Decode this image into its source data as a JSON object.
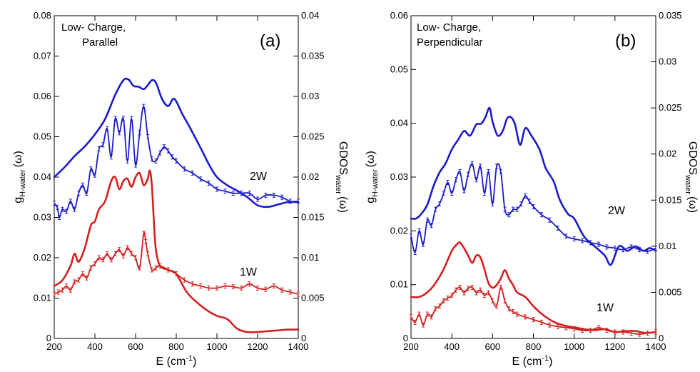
{
  "chart_data": [
    {
      "type": "line",
      "panel_label": "(a)",
      "annotation_lines": [
        "Low- Charge,",
        "Parallel"
      ],
      "xlabel_main": "E (cm",
      "xlabel_sup": "-1",
      "xlabel_end": ")",
      "ylabel_left_main": "g",
      "ylabel_left_sub": "H-water",
      "ylabel_left_end": "(ω)",
      "ylabel_right_main": "GDOS",
      "ylabel_right_sub": "water",
      "ylabel_right_end": "(ω)",
      "xlim": [
        200,
        1400
      ],
      "ylim_left": [
        0,
        0.08
      ],
      "ylim_right": [
        0,
        0.04
      ],
      "xticks": [
        "200",
        "400",
        "600",
        "800",
        "1000",
        "1200",
        "1400"
      ],
      "yticks_left": [
        "0",
        "0.01",
        "0.02",
        "0.03",
        "0.04",
        "0.05",
        "0.06",
        "0.07",
        "0.08"
      ],
      "yticks_right": [
        "0",
        "0.005",
        "0.01",
        "0.015",
        "0.02",
        "0.025",
        "0.03",
        "0.035",
        "0.04"
      ],
      "series": [
        {
          "label": "2W",
          "axis": "right",
          "style": "smooth",
          "color": "#1a1acc",
          "x": [
            200,
            250,
            300,
            350,
            400,
            450,
            500,
            540,
            565,
            590,
            615,
            640,
            660,
            680,
            700,
            730,
            760,
            790,
            830,
            870,
            920,
            960,
            1000,
            1050,
            1100,
            1150,
            1200,
            1250,
            1300,
            1350,
            1400
          ],
          "y": [
            0.02,
            0.0212,
            0.0226,
            0.0238,
            0.0253,
            0.0272,
            0.0302,
            0.032,
            0.0321,
            0.0313,
            0.0312,
            0.0309,
            0.0314,
            0.032,
            0.0317,
            0.0297,
            0.0288,
            0.0297,
            0.0278,
            0.026,
            0.0236,
            0.0216,
            0.02,
            0.019,
            0.0183,
            0.0175,
            0.0165,
            0.0163,
            0.0166,
            0.0169,
            0.0169
          ]
        },
        {
          "label": "2W",
          "axis": "left",
          "style": "errorbar",
          "color": "#1a1acc",
          "x": [
            200,
            215,
            225,
            240,
            260,
            280,
            300,
            320,
            340,
            360,
            380,
            400,
            420,
            440,
            460,
            480,
            500,
            520,
            540,
            560,
            580,
            600,
            620,
            640,
            660,
            680,
            700,
            720,
            740,
            760,
            780,
            800,
            840,
            880,
            920,
            960,
            1000,
            1040,
            1080,
            1120,
            1160,
            1200,
            1240,
            1280,
            1320,
            1360,
            1400
          ],
          "y": [
            0.0335,
            0.0325,
            0.03,
            0.032,
            0.0315,
            0.034,
            0.032,
            0.036,
            0.038,
            0.036,
            0.042,
            0.0405,
            0.047,
            0.048,
            0.052,
            0.045,
            0.0545,
            0.051,
            0.0545,
            0.044,
            0.0545,
            0.043,
            0.051,
            0.0575,
            0.05,
            0.0445,
            0.044,
            0.046,
            0.0475,
            0.0465,
            0.045,
            0.044,
            0.042,
            0.041,
            0.0395,
            0.0385,
            0.037,
            0.0365,
            0.036,
            0.036,
            0.036,
            0.0345,
            0.0355,
            0.0355,
            0.035,
            0.034,
            0.034
          ]
        },
        {
          "label": "1W",
          "axis": "right",
          "style": "smooth",
          "color": "#d42020",
          "x": [
            200,
            240,
            280,
            300,
            320,
            350,
            380,
            400,
            420,
            450,
            480,
            500,
            520,
            540,
            560,
            580,
            600,
            620,
            640,
            660,
            670,
            680,
            690,
            700,
            720,
            760,
            800,
            850,
            900,
            950,
            1000,
            1050,
            1100,
            1150,
            1200,
            1250,
            1300,
            1350,
            1400
          ],
          "y": [
            0.0065,
            0.0072,
            0.009,
            0.0105,
            0.0095,
            0.0112,
            0.014,
            0.0145,
            0.016,
            0.017,
            0.0195,
            0.02,
            0.0185,
            0.0195,
            0.0198,
            0.0188,
            0.02,
            0.0205,
            0.019,
            0.0198,
            0.0208,
            0.019,
            0.0145,
            0.011,
            0.009,
            0.0085,
            0.008,
            0.0058,
            0.0045,
            0.0035,
            0.0028,
            0.0024,
            0.0012,
            0.0008,
            0.0008,
            0.0009,
            0.001,
            0.0011,
            0.0011
          ]
        },
        {
          "label": "1W",
          "axis": "left",
          "style": "errorbar",
          "color": "#d42020",
          "x": [
            200,
            220,
            240,
            260,
            280,
            300,
            320,
            340,
            360,
            380,
            400,
            420,
            440,
            460,
            480,
            500,
            520,
            540,
            560,
            580,
            600,
            620,
            640,
            650,
            660,
            680,
            700,
            720,
            760,
            800,
            840,
            880,
            920,
            960,
            1000,
            1040,
            1080,
            1120,
            1160,
            1200,
            1240,
            1280,
            1320,
            1360,
            1400
          ],
          "y": [
            0.011,
            0.0115,
            0.012,
            0.013,
            0.012,
            0.014,
            0.0145,
            0.016,
            0.015,
            0.0175,
            0.0185,
            0.02,
            0.0195,
            0.021,
            0.0195,
            0.021,
            0.022,
            0.0205,
            0.0225,
            0.021,
            0.02,
            0.0175,
            0.026,
            0.024,
            0.021,
            0.017,
            0.0175,
            0.018,
            0.017,
            0.016,
            0.0145,
            0.0135,
            0.013,
            0.0125,
            0.0125,
            0.013,
            0.0128,
            0.0125,
            0.0135,
            0.0125,
            0.0122,
            0.013,
            0.012,
            0.0115,
            0.011
          ]
        }
      ]
    },
    {
      "type": "line",
      "panel_label": "(b)",
      "annotation_lines": [
        "Low- Charge,",
        "Perpendicular"
      ],
      "xlabel_main": "E (cm",
      "xlabel_sup": "-1",
      "xlabel_end": ")",
      "ylabel_left_main": "g",
      "ylabel_left_sub": "H-water",
      "ylabel_left_end": "(ω)",
      "ylabel_right_main": "GDOS",
      "ylabel_right_sub": "water",
      "ylabel_right_end": "(ω)",
      "xlim": [
        200,
        1400
      ],
      "ylim_left": [
        0,
        0.06
      ],
      "ylim_right": [
        0,
        0.035
      ],
      "xticks": [
        "200",
        "400",
        "600",
        "800",
        "1000",
        "1200",
        "1400"
      ],
      "yticks_left": [
        "0",
        "0.01",
        "0.02",
        "0.03",
        "0.04",
        "0.05",
        "0.06"
      ],
      "yticks_right": [
        "0",
        "0.005",
        "0.01",
        "0.015",
        "0.02",
        "0.025",
        "0.03",
        "0.035"
      ],
      "series": [
        {
          "label": "2W",
          "axis": "right",
          "style": "smooth",
          "color": "#1a1acc",
          "x": [
            200,
            225,
            250,
            280,
            310,
            340,
            370,
            400,
            430,
            460,
            490,
            520,
            545,
            565,
            585,
            600,
            625,
            650,
            670,
            690,
            710,
            735,
            760,
            790,
            830,
            860,
            900,
            930,
            970,
            1000,
            1050,
            1100,
            1150,
            1180,
            1220,
            1260,
            1300,
            1340,
            1370,
            1400
          ],
          "y": [
            0.013,
            0.013,
            0.0135,
            0.0145,
            0.0165,
            0.018,
            0.019,
            0.0205,
            0.0215,
            0.0225,
            0.022,
            0.0232,
            0.0233,
            0.024,
            0.025,
            0.0235,
            0.022,
            0.0225,
            0.0238,
            0.024,
            0.0232,
            0.021,
            0.0228,
            0.022,
            0.0205,
            0.0185,
            0.017,
            0.015,
            0.0135,
            0.013,
            0.011,
            0.01,
            0.009,
            0.008,
            0.01,
            0.0095,
            0.01,
            0.0095,
            0.0098,
            0.0095
          ]
        },
        {
          "label": "2W",
          "axis": "left",
          "style": "errorbar",
          "color": "#1a1acc",
          "x": [
            200,
            220,
            240,
            260,
            280,
            300,
            320,
            340,
            360,
            380,
            400,
            420,
            440,
            460,
            480,
            500,
            520,
            540,
            560,
            580,
            600,
            620,
            640,
            660,
            680,
            700,
            720,
            740,
            760,
            780,
            800,
            840,
            880,
            920,
            960,
            1000,
            1040,
            1080,
            1120,
            1160,
            1200,
            1240,
            1280,
            1320,
            1360,
            1400
          ],
          "y": [
            0.019,
            0.016,
            0.02,
            0.0175,
            0.022,
            0.021,
            0.024,
            0.025,
            0.027,
            0.029,
            0.027,
            0.0295,
            0.031,
            0.0275,
            0.0305,
            0.0325,
            0.0295,
            0.032,
            0.027,
            0.031,
            0.025,
            0.032,
            0.031,
            0.024,
            0.023,
            0.024,
            0.024,
            0.025,
            0.0265,
            0.0255,
            0.0245,
            0.023,
            0.022,
            0.0205,
            0.019,
            0.0185,
            0.0182,
            0.0178,
            0.0175,
            0.017,
            0.0168,
            0.0165,
            0.017,
            0.0165,
            0.0162,
            0.0168
          ]
        },
        {
          "label": "1W",
          "axis": "right",
          "style": "smooth",
          "color": "#d42020",
          "x": [
            200,
            240,
            280,
            320,
            360,
            400,
            425,
            440,
            460,
            480,
            500,
            520,
            540,
            560,
            580,
            600,
            620,
            640,
            660,
            680,
            700,
            720,
            760,
            800,
            850,
            900,
            950,
            1000,
            1050,
            1100,
            1150,
            1200,
            1250,
            1300,
            1350,
            1400
          ],
          "y": [
            0.0045,
            0.0045,
            0.005,
            0.006,
            0.0075,
            0.0095,
            0.0102,
            0.0104,
            0.0098,
            0.009,
            0.0082,
            0.009,
            0.0088,
            0.0075,
            0.006,
            0.0055,
            0.0058,
            0.0065,
            0.0074,
            0.0065,
            0.0058,
            0.005,
            0.0045,
            0.0035,
            0.0025,
            0.0018,
            0.0014,
            0.0012,
            0.001,
            0.0009,
            0.001,
            0.0007,
            0.0008,
            0.0008,
            0.0006,
            0.0007
          ]
        },
        {
          "label": "1W",
          "axis": "left",
          "style": "errorbar",
          "color": "#d42020",
          "x": [
            200,
            220,
            240,
            260,
            280,
            300,
            320,
            340,
            360,
            380,
            400,
            420,
            440,
            460,
            480,
            500,
            520,
            540,
            560,
            580,
            600,
            620,
            640,
            660,
            680,
            700,
            720,
            760,
            800,
            840,
            880,
            920,
            960,
            1000,
            1040,
            1080,
            1120,
            1160,
            1200,
            1240,
            1280,
            1320,
            1360,
            1400
          ],
          "y": [
            0.004,
            0.003,
            0.0045,
            0.0025,
            0.0045,
            0.004,
            0.0055,
            0.006,
            0.007,
            0.0075,
            0.008,
            0.009,
            0.0095,
            0.0085,
            0.0093,
            0.0095,
            0.0085,
            0.009,
            0.008,
            0.0085,
            0.007,
            0.006,
            0.0095,
            0.007,
            0.0055,
            0.005,
            0.0045,
            0.004,
            0.0035,
            0.003,
            0.0025,
            0.0022,
            0.002,
            0.0018,
            0.0015,
            0.0015,
            0.002,
            0.0015,
            0.0012,
            0.0012,
            0.001,
            0.0008,
            0.001,
            0.0012
          ]
        }
      ]
    }
  ]
}
